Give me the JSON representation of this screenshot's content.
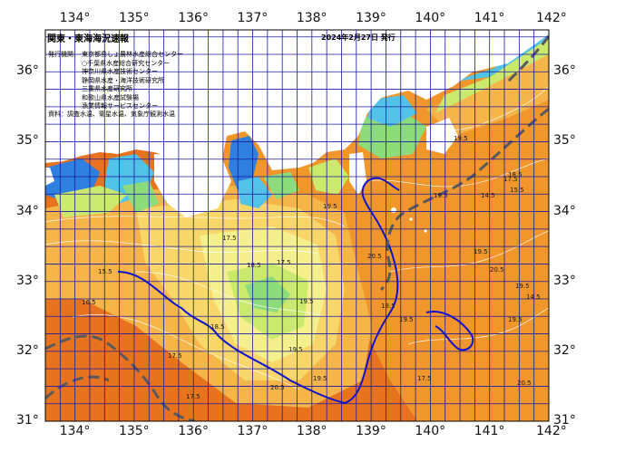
{
  "map": {
    "title": "関東・東海海況速報",
    "date": "2024年2月27日 発行",
    "issuer_label": "発行機関：",
    "issuers": [
      "東京都島しょ農林水産総合センター",
      "○千葉県水産総合研究センター",
      "神奈川県水産技術センター",
      "静岡県水産・海洋技術研究所",
      "三重県水産研究所",
      "和歌山県水産試験場",
      "漁業情報サービスセンター"
    ],
    "materials": "資料：調査水温、衛星水温、気象庁観測水温",
    "lon_labels": [
      "134°",
      "135°",
      "136°",
      "137°",
      "138°",
      "139°",
      "140°",
      "141°",
      "142°"
    ],
    "lat_labels": [
      "36°",
      "35°",
      "34°",
      "33°",
      "32°",
      "31°"
    ],
    "isotherm_labels": [
      "15.5",
      "16.5",
      "17.5",
      "18.5",
      "19.5",
      "20.5",
      "17.5",
      "19.5",
      "18.5",
      "19.5",
      "19.5",
      "20.5",
      "17.5",
      "17.5",
      "19.5",
      "14.5",
      "15.5",
      "17.5",
      "19.5",
      "20.5",
      "19.5",
      "14.5",
      "19.5",
      "18.5",
      "19.5",
      "17.5",
      "20.5",
      "19.5",
      "18.5"
    ],
    "colors": {
      "deep_orange": "#e8731e",
      "orange": "#f0962a",
      "light_orange": "#f5b548",
      "yellow": "#f8d66a",
      "pale_yellow": "#f5ef8e",
      "lime": "#cbea6d",
      "green": "#8ddc7c",
      "cyan": "#52c2e8",
      "blue": "#2f7fe0",
      "land": "#ffffff",
      "kuroshio_line": "#5a5a5a",
      "contour_blue": "#1010d0",
      "grid": "#1a1aa0"
    }
  }
}
